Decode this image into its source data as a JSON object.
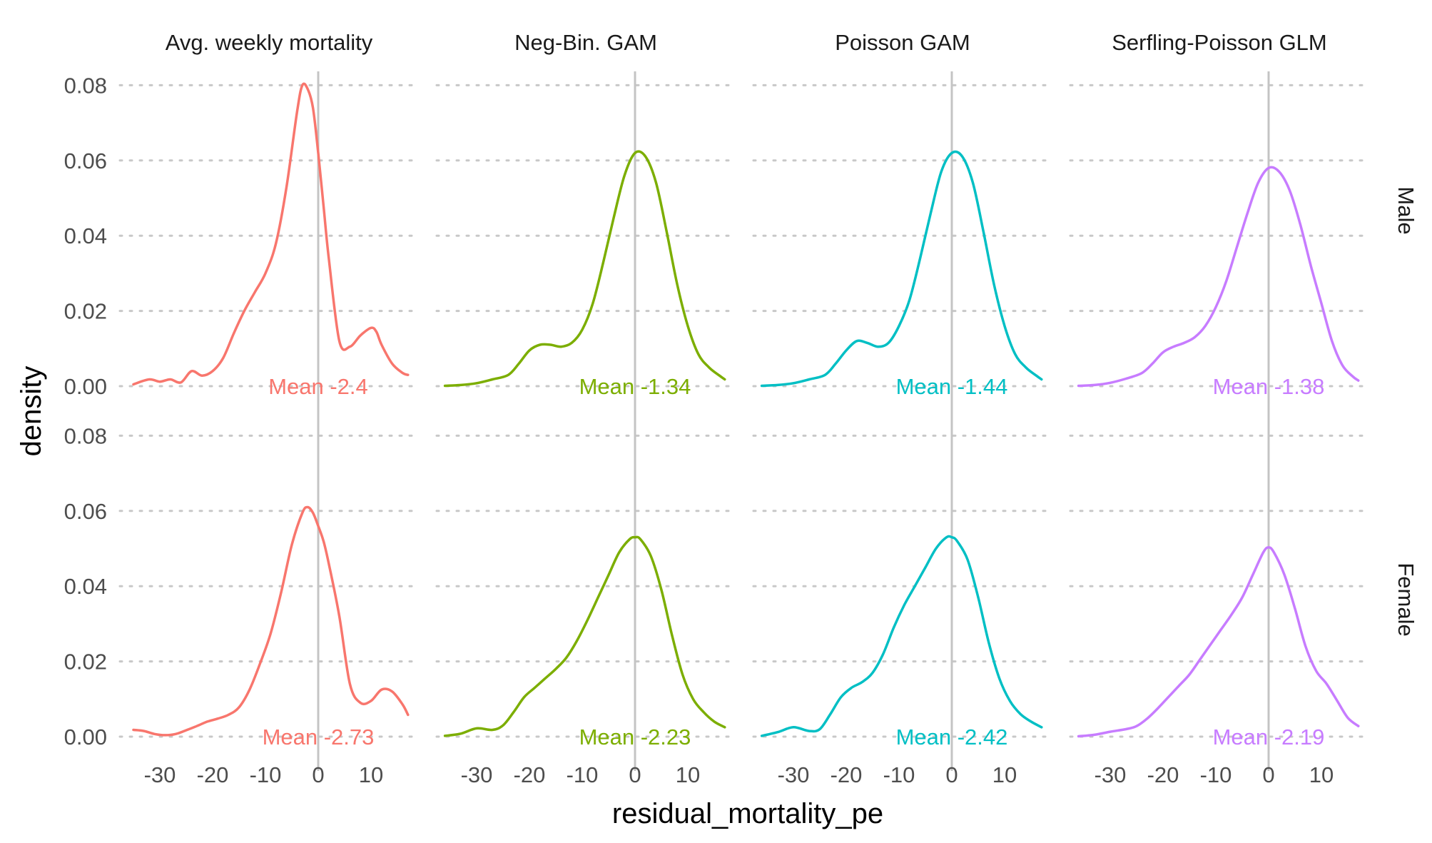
{
  "chart_data": {
    "type": "line",
    "subtype": "density-facets",
    "xlabel": "residual_mortality_pe",
    "ylabel": "density",
    "xlim": [
      -36,
      18
    ],
    "ylim": [
      0,
      0.085
    ],
    "x_ticks": [
      -30,
      -20,
      -10,
      0,
      10
    ],
    "x_tick_labels": [
      "-30",
      "-20",
      "-10",
      "0",
      "10"
    ],
    "y_ticks": [
      0,
      0.02,
      0.04,
      0.06,
      0.08
    ],
    "y_tick_labels": [
      "0.00",
      "0.02",
      "0.04",
      "0.06",
      "0.08"
    ],
    "grid": "horizontal dotted",
    "reference_line_x": 0,
    "columns": [
      "Avg. weekly mortality",
      "Neg-Bin. GAM",
      "Poisson GAM",
      "Serfling-Poisson GLM"
    ],
    "rows": [
      "Male",
      "Female"
    ],
    "colors": [
      "#F8766D",
      "#7CAE00",
      "#00BFC4",
      "#C77CFF"
    ],
    "panels": [
      {
        "row": "Male",
        "column": "Avg. weekly mortality",
        "mean_label": "Mean -2.4",
        "x": [
          -35,
          -32,
          -30,
          -28,
          -26,
          -24,
          -22,
          -20,
          -18,
          -16,
          -14,
          -12,
          -10,
          -8,
          -6,
          -4,
          -3,
          -2,
          -1,
          0,
          1,
          2,
          4,
          6,
          8,
          10,
          11,
          12,
          14,
          16,
          17
        ],
        "y": [
          0.0005,
          0.0018,
          0.0012,
          0.0018,
          0.001,
          0.004,
          0.0028,
          0.004,
          0.0075,
          0.014,
          0.02,
          0.025,
          0.03,
          0.038,
          0.053,
          0.073,
          0.08,
          0.079,
          0.074,
          0.062,
          0.048,
          0.034,
          0.012,
          0.0105,
          0.0135,
          0.0155,
          0.0145,
          0.011,
          0.006,
          0.0035,
          0.003
        ]
      },
      {
        "row": "Male",
        "column": "Neg-Bin. GAM",
        "mean_label": "Mean -1.34",
        "x": [
          -36,
          -33,
          -30,
          -27,
          -24,
          -22,
          -20,
          -18,
          -16,
          -14,
          -12,
          -10,
          -8,
          -6,
          -4,
          -2,
          0,
          2,
          4,
          6,
          8,
          10,
          12,
          14,
          16,
          17
        ],
        "y": [
          0.0001,
          0.0003,
          0.0008,
          0.0018,
          0.003,
          0.006,
          0.0095,
          0.011,
          0.011,
          0.0105,
          0.0115,
          0.015,
          0.022,
          0.033,
          0.045,
          0.056,
          0.062,
          0.061,
          0.054,
          0.041,
          0.027,
          0.016,
          0.0085,
          0.005,
          0.0028,
          0.0018
        ]
      },
      {
        "row": "Male",
        "column": "Poisson GAM",
        "mean_label": "Mean -1.44",
        "x": [
          -36,
          -33,
          -30,
          -27,
          -24,
          -22,
          -20,
          -18,
          -16,
          -14,
          -12,
          -10,
          -8,
          -6,
          -4,
          -2,
          0,
          2,
          4,
          6,
          8,
          10,
          12,
          14,
          16,
          17
        ],
        "y": [
          0.0001,
          0.0003,
          0.0008,
          0.0018,
          0.003,
          0.006,
          0.0095,
          0.012,
          0.0115,
          0.0105,
          0.0115,
          0.016,
          0.023,
          0.034,
          0.046,
          0.057,
          0.062,
          0.061,
          0.054,
          0.041,
          0.027,
          0.016,
          0.0085,
          0.005,
          0.0028,
          0.0018
        ]
      },
      {
        "row": "Male",
        "column": "Serfling-Poisson GLM",
        "mean_label": "Mean -1.38",
        "x": [
          -36,
          -33,
          -30,
          -27,
          -24,
          -22,
          -20,
          -18,
          -16,
          -14,
          -12,
          -10,
          -8,
          -6,
          -4,
          -2,
          0,
          2,
          4,
          6,
          8,
          10,
          12,
          14,
          16,
          17
        ],
        "y": [
          0.0001,
          0.0003,
          0.0009,
          0.002,
          0.0035,
          0.006,
          0.009,
          0.0105,
          0.0115,
          0.013,
          0.016,
          0.021,
          0.028,
          0.037,
          0.046,
          0.054,
          0.058,
          0.057,
          0.052,
          0.043,
          0.032,
          0.022,
          0.012,
          0.0055,
          0.0025,
          0.0015
        ]
      },
      {
        "row": "Female",
        "column": "Avg. weekly mortality",
        "mean_label": "Mean -2.73",
        "x": [
          -35,
          -33,
          -31,
          -29,
          -27,
          -25,
          -23,
          -21,
          -19,
          -17,
          -15,
          -13,
          -11,
          -9,
          -7,
          -5,
          -3,
          -2,
          -1,
          0,
          1,
          2,
          4,
          6,
          8,
          10,
          12,
          14,
          16,
          17
        ],
        "y": [
          0.0018,
          0.0015,
          0.0007,
          0.0004,
          0.0007,
          0.0017,
          0.0028,
          0.004,
          0.0048,
          0.0058,
          0.0078,
          0.0125,
          0.0195,
          0.0275,
          0.0385,
          0.051,
          0.0595,
          0.061,
          0.0595,
          0.056,
          0.052,
          0.046,
          0.032,
          0.014,
          0.009,
          0.0095,
          0.0125,
          0.012,
          0.0085,
          0.0058
        ]
      },
      {
        "row": "Female",
        "column": "Neg-Bin. GAM",
        "mean_label": "Mean -2.23",
        "x": [
          -36,
          -33,
          -30,
          -27,
          -25,
          -23,
          -21,
          -19,
          -17,
          -15,
          -13,
          -11,
          -9,
          -7,
          -5,
          -3,
          -1,
          0,
          1,
          3,
          5,
          7,
          9,
          11,
          13,
          15,
          17
        ],
        "y": [
          0.0002,
          0.0008,
          0.0022,
          0.0018,
          0.003,
          0.0065,
          0.0105,
          0.013,
          0.0155,
          0.018,
          0.021,
          0.0255,
          0.031,
          0.037,
          0.043,
          0.049,
          0.0525,
          0.053,
          0.0525,
          0.048,
          0.039,
          0.027,
          0.0165,
          0.01,
          0.0065,
          0.004,
          0.0025
        ]
      },
      {
        "row": "Female",
        "column": "Poisson GAM",
        "mean_label": "Mean -2.42",
        "x": [
          -36,
          -33,
          -30,
          -27,
          -25,
          -23,
          -21,
          -19,
          -17,
          -15,
          -13,
          -11,
          -9,
          -7,
          -5,
          -3,
          -1,
          0,
          1,
          3,
          5,
          7,
          9,
          11,
          13,
          15,
          17
        ],
        "y": [
          0.0002,
          0.0012,
          0.0025,
          0.0015,
          0.002,
          0.006,
          0.0105,
          0.013,
          0.0145,
          0.017,
          0.022,
          0.029,
          0.035,
          0.04,
          0.045,
          0.05,
          0.053,
          0.053,
          0.052,
          0.047,
          0.037,
          0.025,
          0.0155,
          0.0095,
          0.006,
          0.004,
          0.0025
        ]
      },
      {
        "row": "Female",
        "column": "Serfling-Poisson GLM",
        "mean_label": "Mean -2.19",
        "x": [
          -36,
          -33,
          -30,
          -27,
          -25,
          -23,
          -21,
          -19,
          -17,
          -15,
          -13,
          -11,
          -9,
          -7,
          -5,
          -3,
          -1,
          0,
          1,
          3,
          5,
          7,
          9,
          11,
          13,
          15,
          17
        ],
        "y": [
          0.0001,
          0.0005,
          0.0013,
          0.002,
          0.0028,
          0.0048,
          0.0075,
          0.0105,
          0.0135,
          0.0165,
          0.0205,
          0.0245,
          0.0285,
          0.0325,
          0.037,
          0.043,
          0.049,
          0.0503,
          0.049,
          0.043,
          0.034,
          0.024,
          0.0175,
          0.014,
          0.0095,
          0.005,
          0.0028
        ]
      }
    ]
  }
}
